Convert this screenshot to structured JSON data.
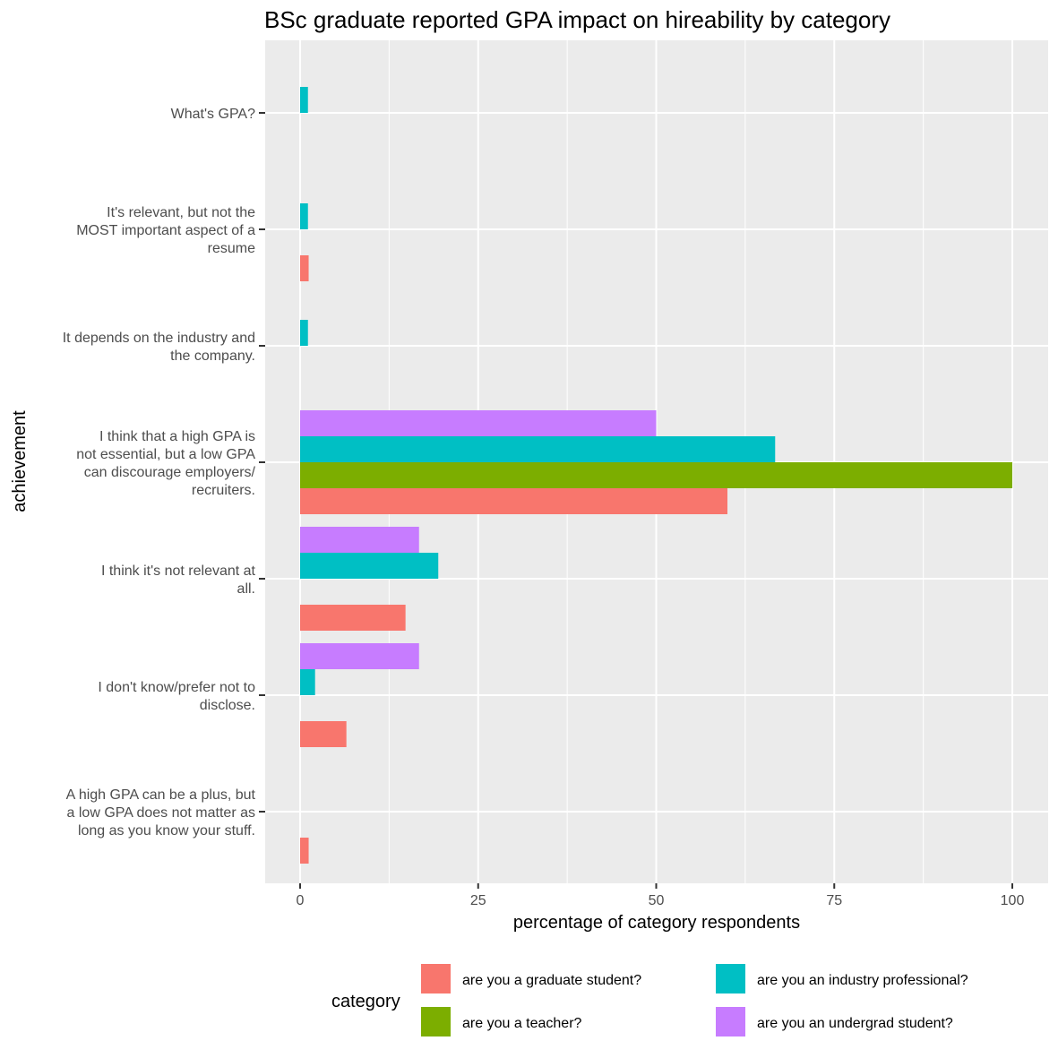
{
  "chart_data": {
    "type": "bar",
    "orientation": "horizontal",
    "title": "BSc graduate reported GPA impact on hireability by category",
    "xlabel": "percentage of category respondents",
    "ylabel": "achievement",
    "xlim": [
      0,
      100
    ],
    "x_ticks": [
      "0",
      "25",
      "50",
      "75",
      "100"
    ],
    "grid": true,
    "legend_position": "bottom",
    "legend_title": "category",
    "categories": [
      [
        "What's GPA?"
      ],
      [
        "It's relevant, but not the",
        "MOST important aspect of a",
        "resume"
      ],
      [
        "It depends on the industry and",
        "the company."
      ],
      [
        "I think that a high GPA is",
        "not essential, but a low GPA",
        "can discourage employers/",
        "recruiters."
      ],
      [
        "I think it's not relevant at",
        "all."
      ],
      [
        "I don't know/prefer not to",
        "disclose."
      ],
      [
        "A high GPA can be a plus, but",
        "a low GPA does not matter as",
        "long as you know your stuff."
      ]
    ],
    "series": [
      {
        "name": "are you a graduate student?",
        "color": "#F8766D",
        "values": [
          null,
          1.2,
          null,
          60.0,
          14.8,
          6.5,
          1.2
        ]
      },
      {
        "name": "are you a teacher?",
        "color": "#7CAE00",
        "values": [
          null,
          null,
          null,
          100.0,
          null,
          null,
          null
        ]
      },
      {
        "name": "are you an industry professional?",
        "color": "#00BFC4",
        "values": [
          1.1,
          1.1,
          1.1,
          66.7,
          19.4,
          2.1,
          null
        ]
      },
      {
        "name": "are you an undergrad student?",
        "color": "#C77CFF",
        "values": [
          null,
          null,
          null,
          50.0,
          16.7,
          16.7,
          null
        ]
      }
    ]
  }
}
